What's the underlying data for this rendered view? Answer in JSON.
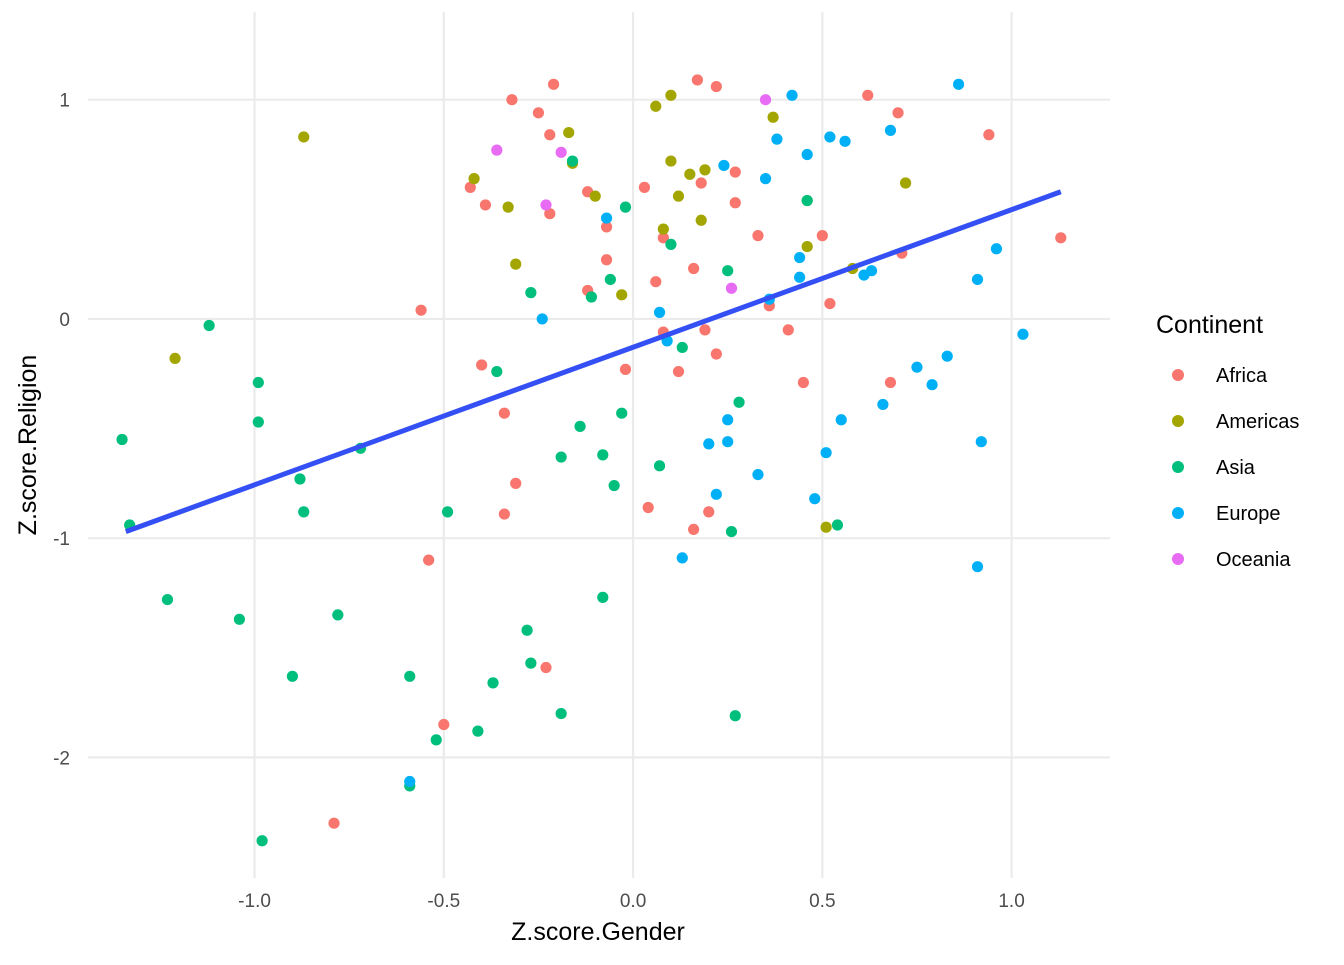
{
  "chart_data": {
    "type": "scatter",
    "xlabel": "Z.score.Gender",
    "ylabel": "Z.score.Religion",
    "xlim": [
      -1.44,
      1.26
    ],
    "ylim": [
      -2.55,
      1.4
    ],
    "x_ticks": [
      {
        "value": -1.0,
        "label": "-1.0"
      },
      {
        "value": -0.5,
        "label": "-0.5"
      },
      {
        "value": 0.0,
        "label": "0.0"
      },
      {
        "value": 0.5,
        "label": "0.5"
      },
      {
        "value": 1.0,
        "label": "1.0"
      }
    ],
    "y_ticks": [
      {
        "value": 1,
        "label": "1"
      },
      {
        "value": 0,
        "label": "0"
      },
      {
        "value": -1,
        "label": "-1"
      },
      {
        "value": -2,
        "label": "-2"
      }
    ],
    "grid": true,
    "legend": {
      "title": "Continent",
      "placement": "right"
    },
    "trend_line": {
      "x": [
        -1.34,
        1.13
      ],
      "y": [
        -0.97,
        0.58
      ],
      "color": "#3450F5"
    },
    "series": [
      {
        "name": "Africa",
        "color": "#F8766D",
        "points": [
          [
            -0.21,
            1.07
          ],
          [
            0.17,
            1.09
          ],
          [
            0.22,
            1.06
          ],
          [
            -0.32,
            1.0
          ],
          [
            -0.25,
            0.94
          ],
          [
            -0.22,
            0.84
          ],
          [
            0.62,
            1.02
          ],
          [
            0.7,
            0.94
          ],
          [
            0.94,
            0.84
          ],
          [
            -0.43,
            0.6
          ],
          [
            -0.39,
            0.52
          ],
          [
            -0.22,
            0.48
          ],
          [
            -0.12,
            0.58
          ],
          [
            -0.07,
            0.42
          ],
          [
            0.03,
            0.6
          ],
          [
            0.18,
            0.62
          ],
          [
            0.27,
            0.67
          ],
          [
            0.27,
            0.53
          ],
          [
            -0.07,
            0.27
          ],
          [
            0.08,
            0.37
          ],
          [
            0.16,
            0.23
          ],
          [
            0.33,
            0.38
          ],
          [
            0.5,
            0.38
          ],
          [
            0.71,
            0.3
          ],
          [
            1.13,
            0.37
          ],
          [
            -0.56,
            0.04
          ],
          [
            -0.12,
            0.13
          ],
          [
            0.06,
            0.17
          ],
          [
            0.36,
            0.06
          ],
          [
            0.52,
            0.07
          ],
          [
            0.08,
            -0.06
          ],
          [
            0.19,
            -0.05
          ],
          [
            0.41,
            -0.05
          ],
          [
            -0.4,
            -0.21
          ],
          [
            -0.02,
            -0.23
          ],
          [
            0.12,
            -0.24
          ],
          [
            0.22,
            -0.16
          ],
          [
            0.45,
            -0.29
          ],
          [
            0.68,
            -0.29
          ],
          [
            -0.34,
            -0.43
          ],
          [
            -0.31,
            -0.75
          ],
          [
            -0.34,
            -0.89
          ],
          [
            0.04,
            -0.86
          ],
          [
            0.16,
            -0.96
          ],
          [
            0.2,
            -0.88
          ],
          [
            -0.54,
            -1.1
          ],
          [
            -0.23,
            -1.59
          ],
          [
            -0.5,
            -1.85
          ],
          [
            -0.79,
            -2.3
          ]
        ]
      },
      {
        "name": "Americas",
        "color": "#A3A500",
        "points": [
          [
            -0.87,
            0.83
          ],
          [
            -1.21,
            -0.18
          ],
          [
            -0.42,
            0.64
          ],
          [
            -0.33,
            0.51
          ],
          [
            -0.31,
            0.25
          ],
          [
            -0.17,
            0.85
          ],
          [
            -0.16,
            0.71
          ],
          [
            -0.1,
            0.56
          ],
          [
            -0.03,
            0.11
          ],
          [
            0.06,
            0.97
          ],
          [
            0.1,
            1.02
          ],
          [
            0.1,
            0.72
          ],
          [
            0.12,
            0.56
          ],
          [
            0.08,
            0.41
          ],
          [
            0.15,
            0.66
          ],
          [
            0.19,
            0.68
          ],
          [
            0.18,
            0.45
          ],
          [
            0.37,
            0.92
          ],
          [
            0.46,
            0.54
          ],
          [
            0.46,
            0.33
          ],
          [
            0.58,
            0.23
          ],
          [
            0.72,
            0.62
          ],
          [
            0.51,
            -0.95
          ]
        ]
      },
      {
        "name": "Asia",
        "color": "#00BF7D",
        "points": [
          [
            -1.35,
            -0.55
          ],
          [
            -1.12,
            -0.03
          ],
          [
            -0.99,
            -0.29
          ],
          [
            -0.99,
            -0.47
          ],
          [
            -1.33,
            -0.94
          ],
          [
            -1.23,
            -1.28
          ],
          [
            -1.04,
            -1.37
          ],
          [
            -0.88,
            -0.73
          ],
          [
            -0.87,
            -0.88
          ],
          [
            -0.72,
            -0.59
          ],
          [
            -0.78,
            -1.35
          ],
          [
            -0.9,
            -1.63
          ],
          [
            -0.59,
            -1.63
          ],
          [
            -0.98,
            -2.38
          ],
          [
            -0.59,
            -2.13
          ],
          [
            -0.52,
            -1.92
          ],
          [
            -0.41,
            -1.88
          ],
          [
            -0.37,
            -1.66
          ],
          [
            -0.27,
            -1.57
          ],
          [
            -0.28,
            -1.42
          ],
          [
            -0.19,
            -1.8
          ],
          [
            -0.08,
            -1.27
          ],
          [
            -0.49,
            -0.88
          ],
          [
            -0.36,
            -0.24
          ],
          [
            -0.27,
            0.12
          ],
          [
            -0.19,
            -0.63
          ],
          [
            -0.14,
            -0.49
          ],
          [
            -0.16,
            0.72
          ],
          [
            -0.11,
            0.1
          ],
          [
            -0.08,
            -0.62
          ],
          [
            -0.06,
            0.18
          ],
          [
            -0.05,
            -0.76
          ],
          [
            -0.03,
            -0.43
          ],
          [
            -0.02,
            0.51
          ],
          [
            0.07,
            -0.67
          ],
          [
            0.1,
            0.34
          ],
          [
            0.13,
            -0.13
          ],
          [
            0.25,
            0.22
          ],
          [
            0.26,
            -0.97
          ],
          [
            0.28,
            -0.38
          ],
          [
            0.27,
            -1.81
          ],
          [
            0.46,
            0.54
          ],
          [
            0.54,
            -0.94
          ]
        ]
      },
      {
        "name": "Europe",
        "color": "#00B0F6",
        "points": [
          [
            -0.59,
            -2.11
          ],
          [
            -0.24,
            0.0
          ],
          [
            -0.07,
            0.46
          ],
          [
            0.07,
            0.03
          ],
          [
            0.09,
            -0.1
          ],
          [
            0.13,
            -1.09
          ],
          [
            0.2,
            -0.57
          ],
          [
            0.22,
            -0.8
          ],
          [
            0.24,
            0.7
          ],
          [
            0.25,
            -0.46
          ],
          [
            0.25,
            -0.56
          ],
          [
            0.33,
            -0.71
          ],
          [
            0.35,
            0.64
          ],
          [
            0.36,
            0.09
          ],
          [
            0.38,
            0.82
          ],
          [
            0.42,
            1.02
          ],
          [
            0.44,
            0.28
          ],
          [
            0.44,
            0.19
          ],
          [
            0.46,
            0.75
          ],
          [
            0.48,
            -0.82
          ],
          [
            0.51,
            -0.61
          ],
          [
            0.52,
            0.83
          ],
          [
            0.55,
            -0.46
          ],
          [
            0.56,
            0.81
          ],
          [
            0.61,
            0.2
          ],
          [
            0.63,
            0.22
          ],
          [
            0.66,
            -0.39
          ],
          [
            0.68,
            0.86
          ],
          [
            0.75,
            -0.22
          ],
          [
            0.79,
            -0.3
          ],
          [
            0.83,
            -0.17
          ],
          [
            0.86,
            1.07
          ],
          [
            0.91,
            0.18
          ],
          [
            0.91,
            -1.13
          ],
          [
            0.92,
            -0.56
          ],
          [
            0.96,
            0.32
          ],
          [
            1.03,
            -0.07
          ]
        ]
      },
      {
        "name": "Oceania",
        "color": "#E76BF3",
        "points": [
          [
            -0.36,
            0.77
          ],
          [
            -0.23,
            0.52
          ],
          [
            -0.19,
            0.76
          ],
          [
            0.26,
            0.14
          ],
          [
            0.35,
            1.0
          ]
        ]
      }
    ]
  }
}
